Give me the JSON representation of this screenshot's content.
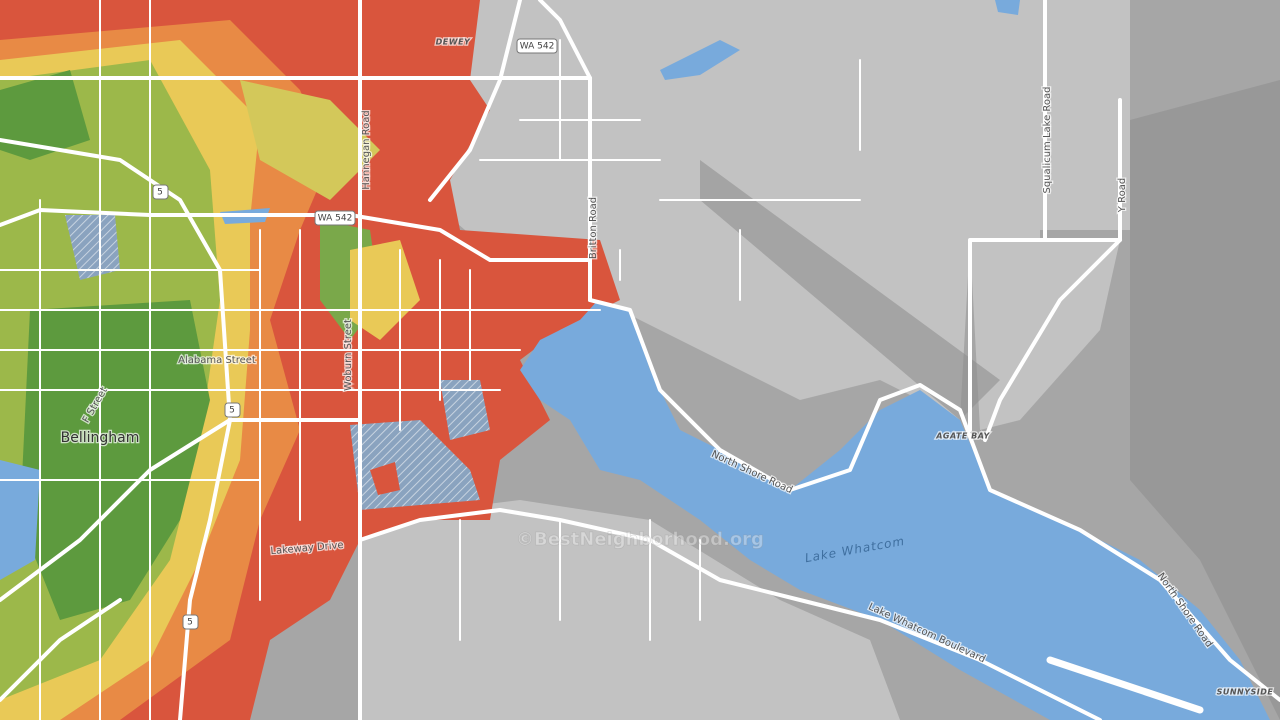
{
  "map": {
    "labels": [
      "DEWEY",
      "WA 542",
      "Hannegan Road",
      "5",
      "WA 542",
      "Britton Road",
      "Squalicum Lake Road",
      "Y Road",
      "Alabama Street",
      "Woburn Street",
      "F Street",
      "Bellingham",
      "5",
      "North Shore Road",
      "AGATE BAY",
      "Lake Whatcom",
      "Lakeway Drive",
      "5",
      "Lake Whatcom Boulevard",
      "North Shore Road",
      "SUNNYSIDE"
    ],
    "watermark": "©BestNeighborhood.org"
  }
}
